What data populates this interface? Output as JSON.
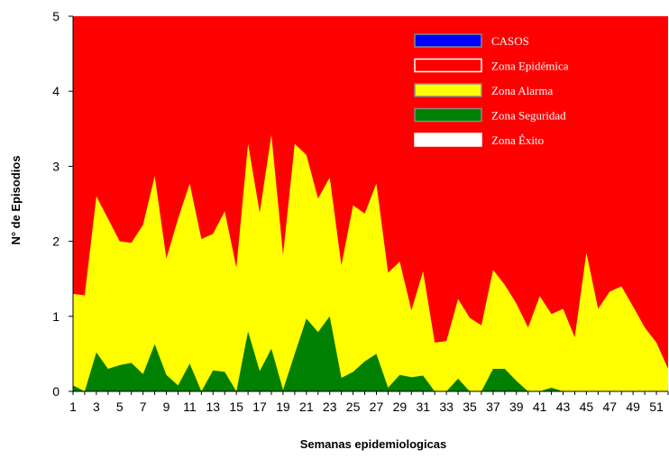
{
  "chart_data": {
    "type": "area",
    "xlabel": "Semanas epidemiologicas",
    "ylabel": "N° de Episodios",
    "xlim": [
      1,
      52
    ],
    "ylim": [
      0,
      5
    ],
    "yticks": [
      0,
      1,
      2,
      3,
      4,
      5
    ],
    "xticks": [
      1,
      3,
      5,
      7,
      9,
      11,
      13,
      15,
      17,
      19,
      21,
      23,
      25,
      27,
      29,
      31,
      33,
      35,
      37,
      39,
      41,
      43,
      45,
      47,
      49,
      51
    ],
    "x": [
      1,
      2,
      3,
      4,
      5,
      6,
      7,
      8,
      9,
      10,
      11,
      12,
      13,
      14,
      15,
      16,
      17,
      18,
      19,
      20,
      21,
      22,
      23,
      24,
      25,
      26,
      27,
      28,
      29,
      30,
      31,
      32,
      33,
      34,
      35,
      36,
      37,
      38,
      39,
      40,
      41,
      42,
      43,
      44,
      45,
      46,
      47,
      48,
      49,
      50,
      51,
      52
    ],
    "legend_position": "top-right",
    "series": [
      {
        "name": "CASOS",
        "color": "#0000ff",
        "values": [
          0,
          0,
          0,
          0,
          0,
          0,
          0,
          0,
          0,
          0,
          0,
          0,
          0,
          0,
          0,
          0,
          0,
          0,
          0,
          0,
          0,
          0,
          0,
          0,
          0,
          0,
          0,
          0,
          0,
          0,
          0,
          0,
          0,
          0,
          0,
          0,
          0,
          0,
          0,
          0,
          0,
          0,
          0,
          0,
          0,
          0,
          0,
          0,
          0,
          0,
          0,
          0
        ]
      },
      {
        "name": "Zona Epidémica",
        "color": "#ff0000",
        "values": [
          5,
          5,
          5,
          5,
          5,
          5,
          5,
          5,
          5,
          5,
          5,
          5,
          5,
          5,
          5,
          5,
          5,
          5,
          5,
          5,
          5,
          5,
          5,
          5,
          5,
          5,
          5,
          5,
          5,
          5,
          5,
          5,
          5,
          5,
          5,
          5,
          5,
          5,
          5,
          5,
          5,
          5,
          5,
          5,
          5,
          5,
          5,
          5,
          5,
          5,
          5,
          5
        ]
      },
      {
        "name": "Zona Alarma",
        "color": "#ffff00",
        "values": [
          1.3,
          1.28,
          2.6,
          2.3,
          2.0,
          1.98,
          2.22,
          2.87,
          1.77,
          2.3,
          2.77,
          2.03,
          2.1,
          2.4,
          1.65,
          3.3,
          2.38,
          3.42,
          1.82,
          3.3,
          3.15,
          2.57,
          2.85,
          1.68,
          2.48,
          2.37,
          2.77,
          1.58,
          1.73,
          1.08,
          1.6,
          0.65,
          0.67,
          1.23,
          0.98,
          0.88,
          1.62,
          1.42,
          1.17,
          0.85,
          1.27,
          1.03,
          1.1,
          0.72,
          1.85,
          1.1,
          1.33,
          1.4,
          1.13,
          0.85,
          0.65,
          0.3
        ]
      },
      {
        "name": "Zona Seguridad",
        "color": "#008000",
        "values": [
          0.08,
          0,
          0.52,
          0.3,
          0.35,
          0.38,
          0.23,
          0.63,
          0.22,
          0.08,
          0.37,
          0,
          0.28,
          0.26,
          0,
          0.8,
          0.27,
          0.57,
          0.02,
          0.5,
          0.97,
          0.79,
          1.0,
          0.18,
          0.26,
          0.4,
          0.5,
          0.05,
          0.22,
          0.19,
          0.21,
          0,
          0,
          0.17,
          0,
          0,
          0.3,
          0.3,
          0.14,
          0,
          0,
          0.05,
          0,
          0,
          0,
          0,
          0,
          0,
          0,
          0,
          0,
          0
        ]
      },
      {
        "name": "Zona Éxito",
        "color": "#ffffff",
        "values": [
          0,
          0,
          0,
          0,
          0,
          0,
          0,
          0,
          0,
          0,
          0,
          0,
          0,
          0,
          0,
          0,
          0,
          0,
          0,
          0,
          0,
          0,
          0,
          0,
          0,
          0,
          0,
          0,
          0,
          0,
          0,
          0,
          0,
          0,
          0,
          0,
          0,
          0,
          0,
          0,
          0,
          0,
          0,
          0,
          0,
          0,
          0,
          0,
          0,
          0,
          0,
          0
        ]
      }
    ]
  }
}
